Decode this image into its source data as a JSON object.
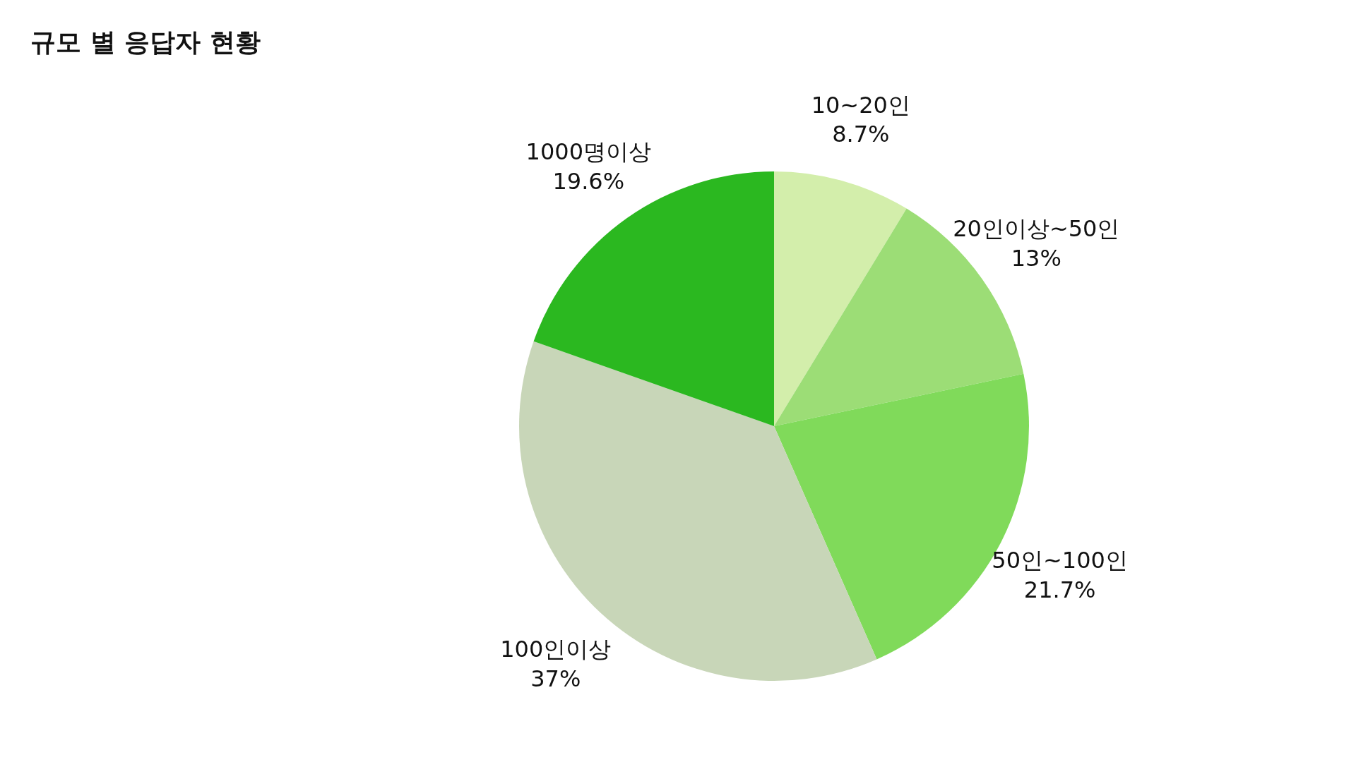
{
  "chart_data": {
    "type": "pie",
    "title": "규모 별 응답자 현황",
    "categories": [
      "10~20인",
      "20인이상~50인",
      "50인~100인",
      "100인이상",
      "1000명이상"
    ],
    "values": [
      8.7,
      13,
      21.7,
      37,
      19.6
    ],
    "value_labels": [
      "8.7%",
      "13%",
      "21.7%",
      "37%",
      "19.6%"
    ],
    "colors": [
      "#d3eeab",
      "#9cdd76",
      "#80da5a",
      "#c8d6b8",
      "#2bb820"
    ]
  }
}
